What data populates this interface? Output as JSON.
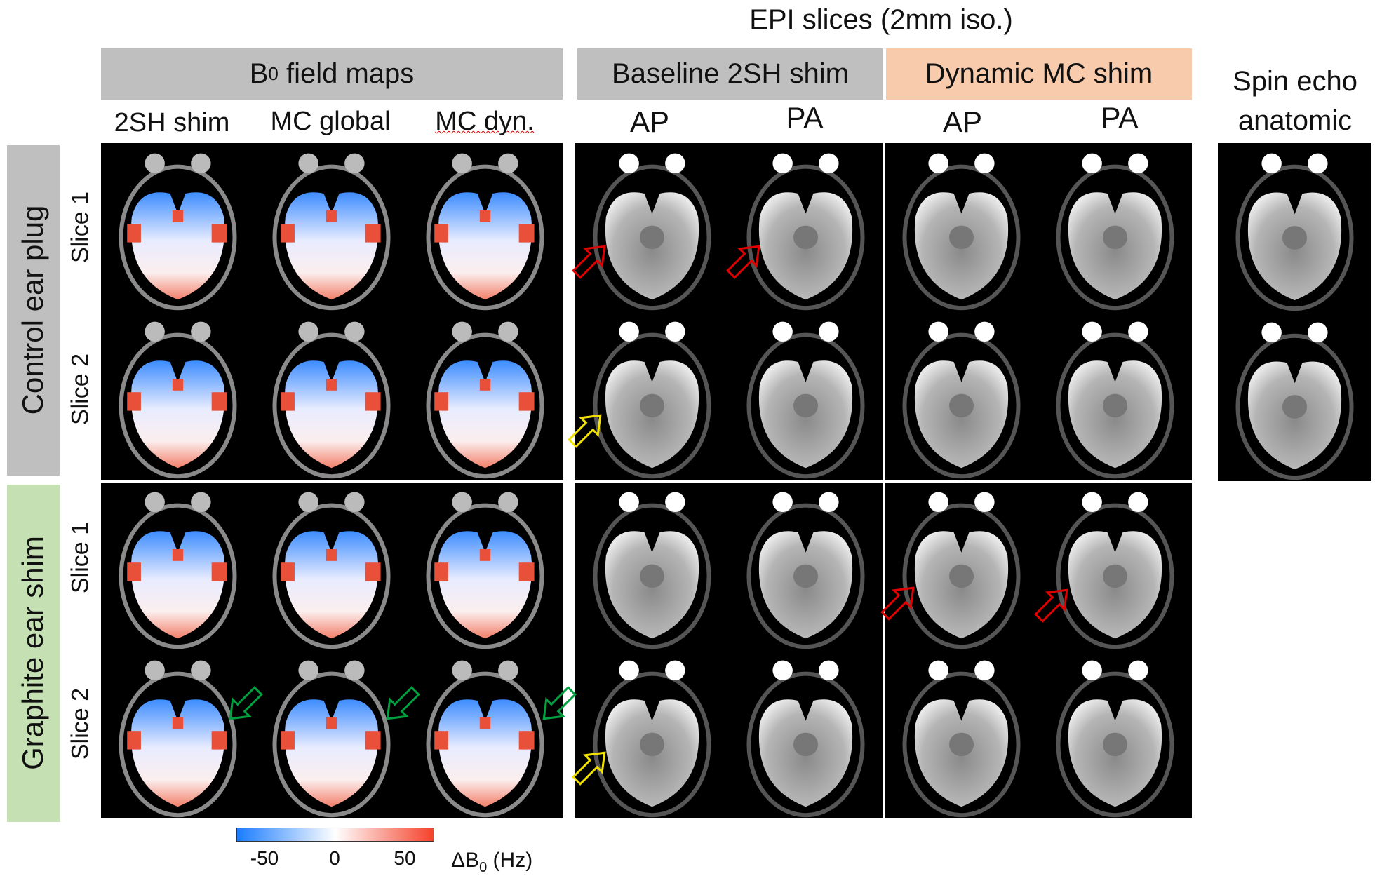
{
  "figure": {
    "title": "EPI slices (2mm iso.)",
    "headers": {
      "field_maps": "B",
      "field_maps_sub": "0",
      "field_maps_rest": " field maps",
      "baseline": "Baseline 2SH shim",
      "dynamic": "Dynamic MC shim",
      "spin_echo_line1": "Spin echo",
      "spin_echo_line2": "anatomic"
    },
    "columns": {
      "fm": [
        "2SH shim",
        "MC global",
        "MC dyn."
      ],
      "epi": [
        "AP",
        "PA",
        "AP",
        "PA"
      ]
    },
    "groups": [
      {
        "label": "Control ear plug",
        "slices": [
          "Slice 1",
          "Slice 2"
        ],
        "color": "#bfbfbf"
      },
      {
        "label": "Graphite ear shim",
        "slices": [
          "Slice 1",
          "Slice 2"
        ],
        "color": "#c5e0b3"
      }
    ],
    "colors": {
      "header_gray": "#bfbfbf",
      "header_peach": "#f8cbad",
      "arrow_red": "#e00000",
      "arrow_yellow": "#f2e200",
      "arrow_green": "#00a040"
    },
    "colorbar": {
      "label": "ΔB",
      "label_sub": "0",
      "label_unit": " (Hz)",
      "ticks": [
        "-50",
        "0",
        "50"
      ],
      "tick_values": [
        -50,
        0,
        50
      ],
      "range": [
        -70,
        70
      ],
      "colormap": [
        "#1a7cff",
        "#ffffff",
        "#f5412a"
      ]
    }
  }
}
